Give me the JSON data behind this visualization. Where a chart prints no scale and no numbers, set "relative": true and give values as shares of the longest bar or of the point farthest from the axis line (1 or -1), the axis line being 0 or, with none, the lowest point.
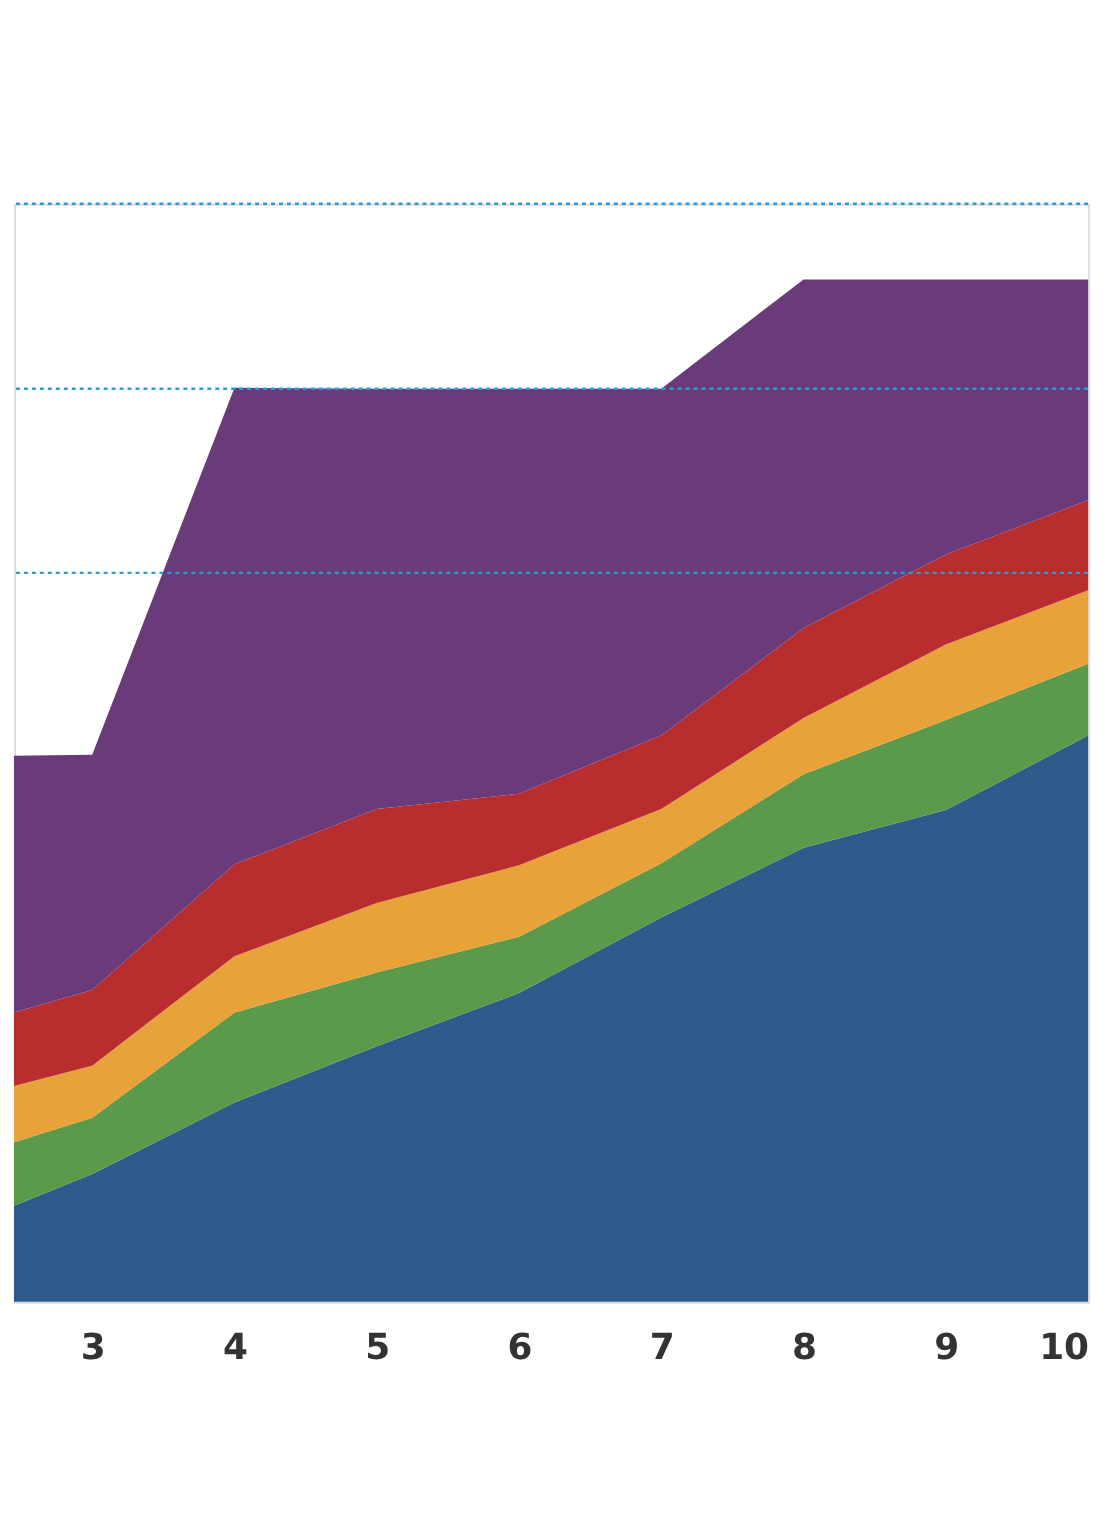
{
  "chart_data": {
    "type": "area",
    "stacked": true,
    "relative": true,
    "x": [
      2.45,
      3,
      4,
      5,
      6,
      7,
      8,
      9,
      10
    ],
    "xlim": [
      2.45,
      10
    ],
    "xticks": [
      3,
      4,
      5,
      6,
      7,
      8,
      9,
      10
    ],
    "series": [
      {
        "color": "#2e5a8c",
        "values": [
          0.094,
          0.125,
          0.195,
          0.25,
          0.302,
          0.376,
          0.444,
          0.481,
          0.554
        ]
      },
      {
        "color": "#5b9a4a",
        "values": [
          0.062,
          0.055,
          0.088,
          0.072,
          0.055,
          0.053,
          0.072,
          0.088,
          0.07
        ]
      },
      {
        "color": "#e8a23a",
        "values": [
          0.055,
          0.051,
          0.055,
          0.068,
          0.07,
          0.053,
          0.055,
          0.074,
          0.072
        ]
      },
      {
        "color": "#b82e2e",
        "values": [
          0.072,
          0.074,
          0.09,
          0.092,
          0.07,
          0.072,
          0.088,
          0.088,
          0.088
        ]
      },
      {
        "color": "#6b3a7a",
        "values": [
          0.251,
          0.23,
          0.466,
          0.411,
          0.396,
          0.339,
          0.341,
          0.269,
          0.216
        ]
      }
    ],
    "ref_lines": [
      {
        "axis": "y",
        "value": 1.074,
        "color": "#2e9bd0",
        "line_style": "dotted"
      },
      {
        "axis": "y",
        "value": 0.893,
        "color": "#2e9bd0",
        "line_style": "dotted"
      },
      {
        "axis": "y",
        "value": 0.713,
        "color": "#2e9bd0",
        "line_style": "dotted"
      }
    ],
    "legend": false,
    "grid": false
  }
}
